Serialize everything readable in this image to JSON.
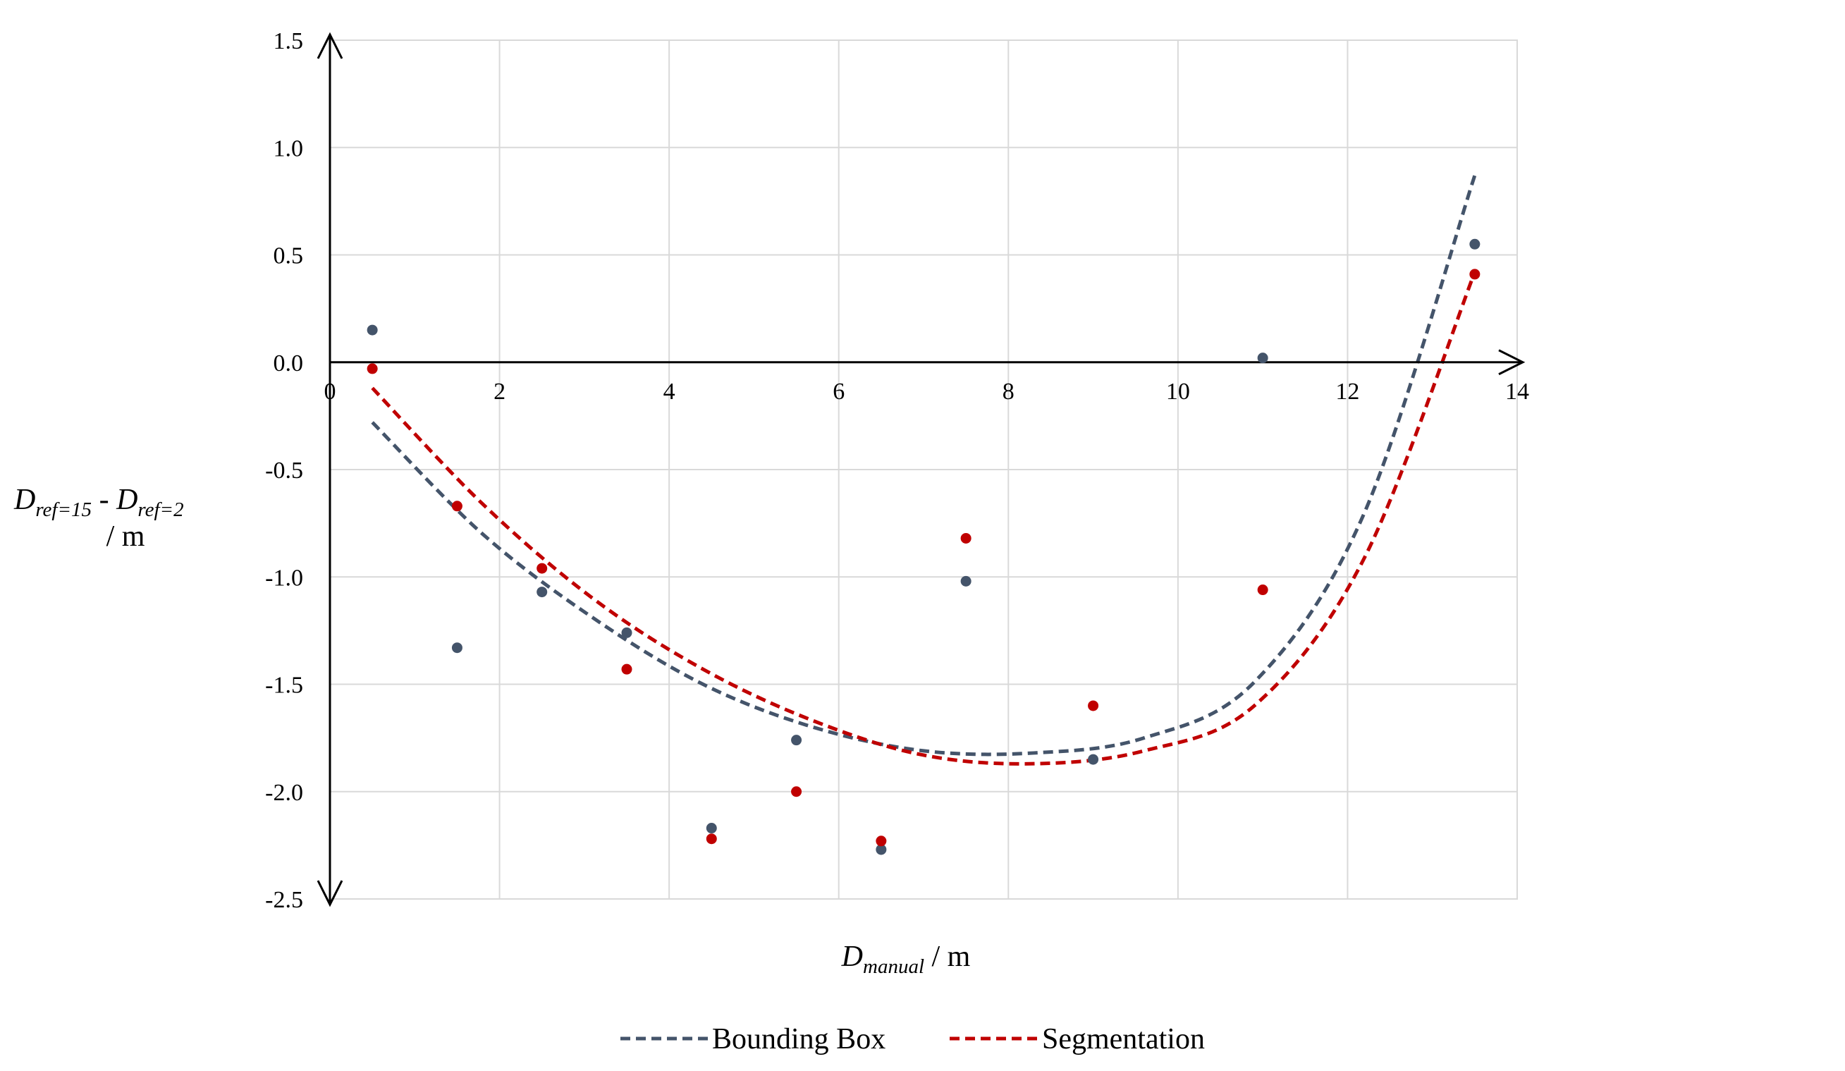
{
  "chart_data": {
    "type": "scatter",
    "title": "",
    "xlabel": {
      "main": "D",
      "sub": "manual",
      "unit": " / m"
    },
    "ylabel": {
      "line1_a": "D",
      "sub_a": "ref=15",
      "sep": " - ",
      "line1_b": "D",
      "sub_b": "ref=2",
      "line2": "/ m"
    },
    "xlim": [
      0,
      14
    ],
    "ylim": [
      -2.5,
      1.5
    ],
    "xticks": [
      0,
      2,
      4,
      6,
      8,
      10,
      12,
      14
    ],
    "yticks": [
      -2.5,
      -2.0,
      -1.5,
      -1.0,
      -0.5,
      0.0,
      0.5,
      1.0,
      1.5
    ],
    "xtick_labels": [
      "0",
      "2",
      "4",
      "6",
      "8",
      "10",
      "12",
      "14"
    ],
    "ytick_labels": [
      "-2.5",
      "-2.0",
      "-1.5",
      "-1.0",
      "-0.5",
      "0.0",
      "0.5",
      "1.0",
      "1.5"
    ],
    "grid": true,
    "legend_position": "bottom",
    "series": [
      {
        "name": "Bounding Box",
        "color": "#44546a",
        "x": [
          0.5,
          1.5,
          2.5,
          3.5,
          4.5,
          5.5,
          6.5,
          7.5,
          9.0,
          11.0,
          13.5
        ],
        "y": [
          0.15,
          -1.33,
          -1.07,
          -1.26,
          -2.17,
          -1.76,
          -2.27,
          -1.02,
          -1.85,
          0.02,
          0.55
        ],
        "trend": {
          "type": "poly2",
          "x_start": 0.5,
          "x_end": 13.5,
          "y": [
            -0.28,
            -0.8,
            -1.19,
            -1.5,
            -1.7,
            -1.81,
            -1.82,
            -1.75,
            -1.49,
            -0.7,
            0.87
          ]
        }
      },
      {
        "name": "Segmentation",
        "color": "#c00000",
        "x": [
          0.5,
          1.5,
          2.5,
          3.5,
          4.5,
          5.5,
          6.5,
          7.5,
          9.0,
          11.0,
          13.5
        ],
        "y": [
          -0.03,
          -0.67,
          -0.96,
          -1.43,
          -2.22,
          -2.0,
          -2.23,
          -0.82,
          -1.6,
          -1.06,
          0.41
        ],
        "trend": {
          "type": "poly2",
          "x_start": 0.5,
          "x_end": 13.5,
          "y": [
            -0.12,
            -0.66,
            -1.1,
            -1.43,
            -1.67,
            -1.83,
            -1.87,
            -1.81,
            -1.6,
            -0.91,
            0.42
          ]
        }
      }
    ]
  }
}
